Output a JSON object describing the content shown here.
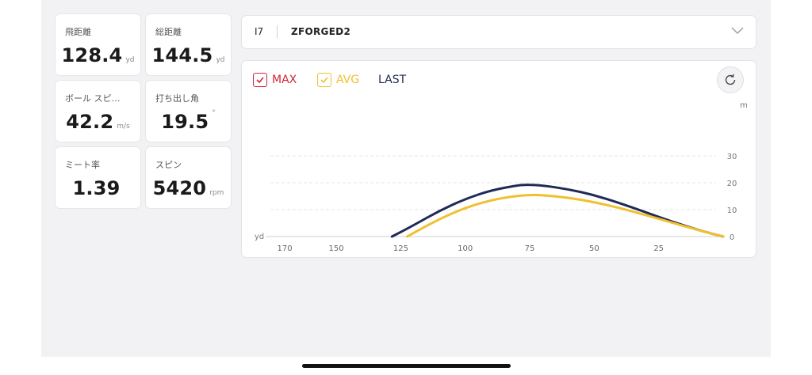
{
  "stats": [
    {
      "label": "飛距離",
      "value": "128.4",
      "unit": "yd"
    },
    {
      "label": "総距離",
      "value": "144.5",
      "unit": "yd"
    },
    {
      "label": "ボール スピ…",
      "value": "42.2",
      "unit": "m/s"
    },
    {
      "label": "打ち出し角",
      "value": "19.5",
      "unit": "°"
    },
    {
      "label": "ミート率",
      "value": "1.39",
      "unit": ""
    },
    {
      "label": "スピン",
      "value": "5420",
      "unit": "rpm"
    }
  ],
  "club": {
    "number": "I7",
    "model": "ZFORGED2"
  },
  "legend": [
    {
      "label": "MAX",
      "checked": true,
      "color": "#d0253a"
    },
    {
      "label": "AVG",
      "checked": true,
      "color": "#f0c030"
    },
    {
      "label": "LAST",
      "checked": false,
      "color": "#1f2a55"
    }
  ],
  "icons": {
    "dropdown": "chevron-down-icon",
    "refresh": "refresh-icon",
    "checkbox": "checkmark-icon"
  },
  "chart_data": {
    "type": "line",
    "x_unit": "yd",
    "y_unit": "m",
    "x_ticks": [
      170,
      150,
      125,
      100,
      75,
      50,
      25
    ],
    "y_ticks": [
      0,
      10,
      20,
      30
    ],
    "xlim": [
      0,
      178
    ],
    "ylim": [
      0,
      30
    ],
    "x_reversed": true,
    "grid": true,
    "series": [
      {
        "name": "LAST",
        "color": "#1f2a55",
        "x": [
          128.4,
          120,
          110,
          100,
          90,
          80,
          76,
          70,
          60,
          50,
          40,
          30,
          20,
          10,
          0
        ],
        "y": [
          0,
          4.2,
          9.6,
          14.0,
          17.2,
          19.0,
          19.3,
          19.0,
          17.6,
          15.4,
          12.4,
          9.0,
          5.6,
          2.5,
          0
        ]
      },
      {
        "name": "AVG",
        "color": "#f0c030",
        "x": [
          122.5,
          115,
          105,
          95,
          85,
          76,
          70,
          60,
          50,
          40,
          30,
          20,
          10,
          0
        ],
        "y": [
          0,
          4.0,
          8.8,
          12.3,
          14.5,
          15.5,
          15.4,
          14.5,
          12.8,
          10.6,
          8.0,
          5.2,
          2.5,
          0
        ]
      }
    ]
  }
}
